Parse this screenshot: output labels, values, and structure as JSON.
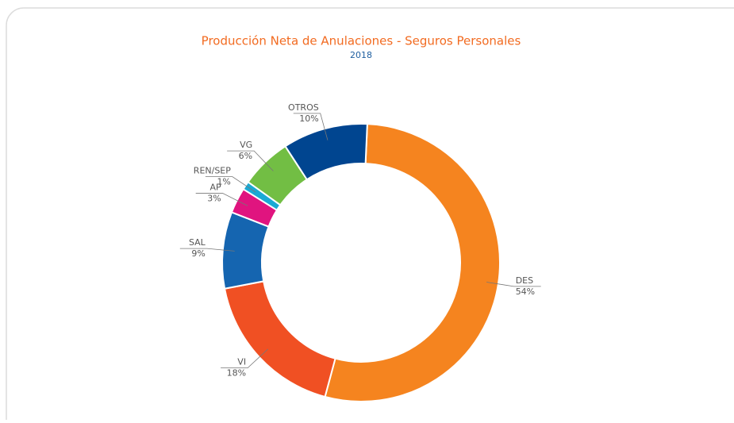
{
  "chart_data": {
    "type": "donut",
    "title": "Producción Neta de Anulaciones - Seguros Personales",
    "subtitle": "2018",
    "categories": [
      "DES",
      "VI",
      "SAL",
      "AP",
      "REN/SEP",
      "VG",
      "OTROS"
    ],
    "values": [
      54,
      18,
      9,
      3,
      1,
      6,
      10
    ],
    "value_labels": [
      "54%",
      "18%",
      "9%",
      "3%",
      "1%",
      "6%",
      "10%"
    ],
    "colors": [
      "#f5841f",
      "#f05023",
      "#1565b0",
      "#e0147f",
      "#1aa9d4",
      "#72be44",
      "#004590"
    ]
  }
}
